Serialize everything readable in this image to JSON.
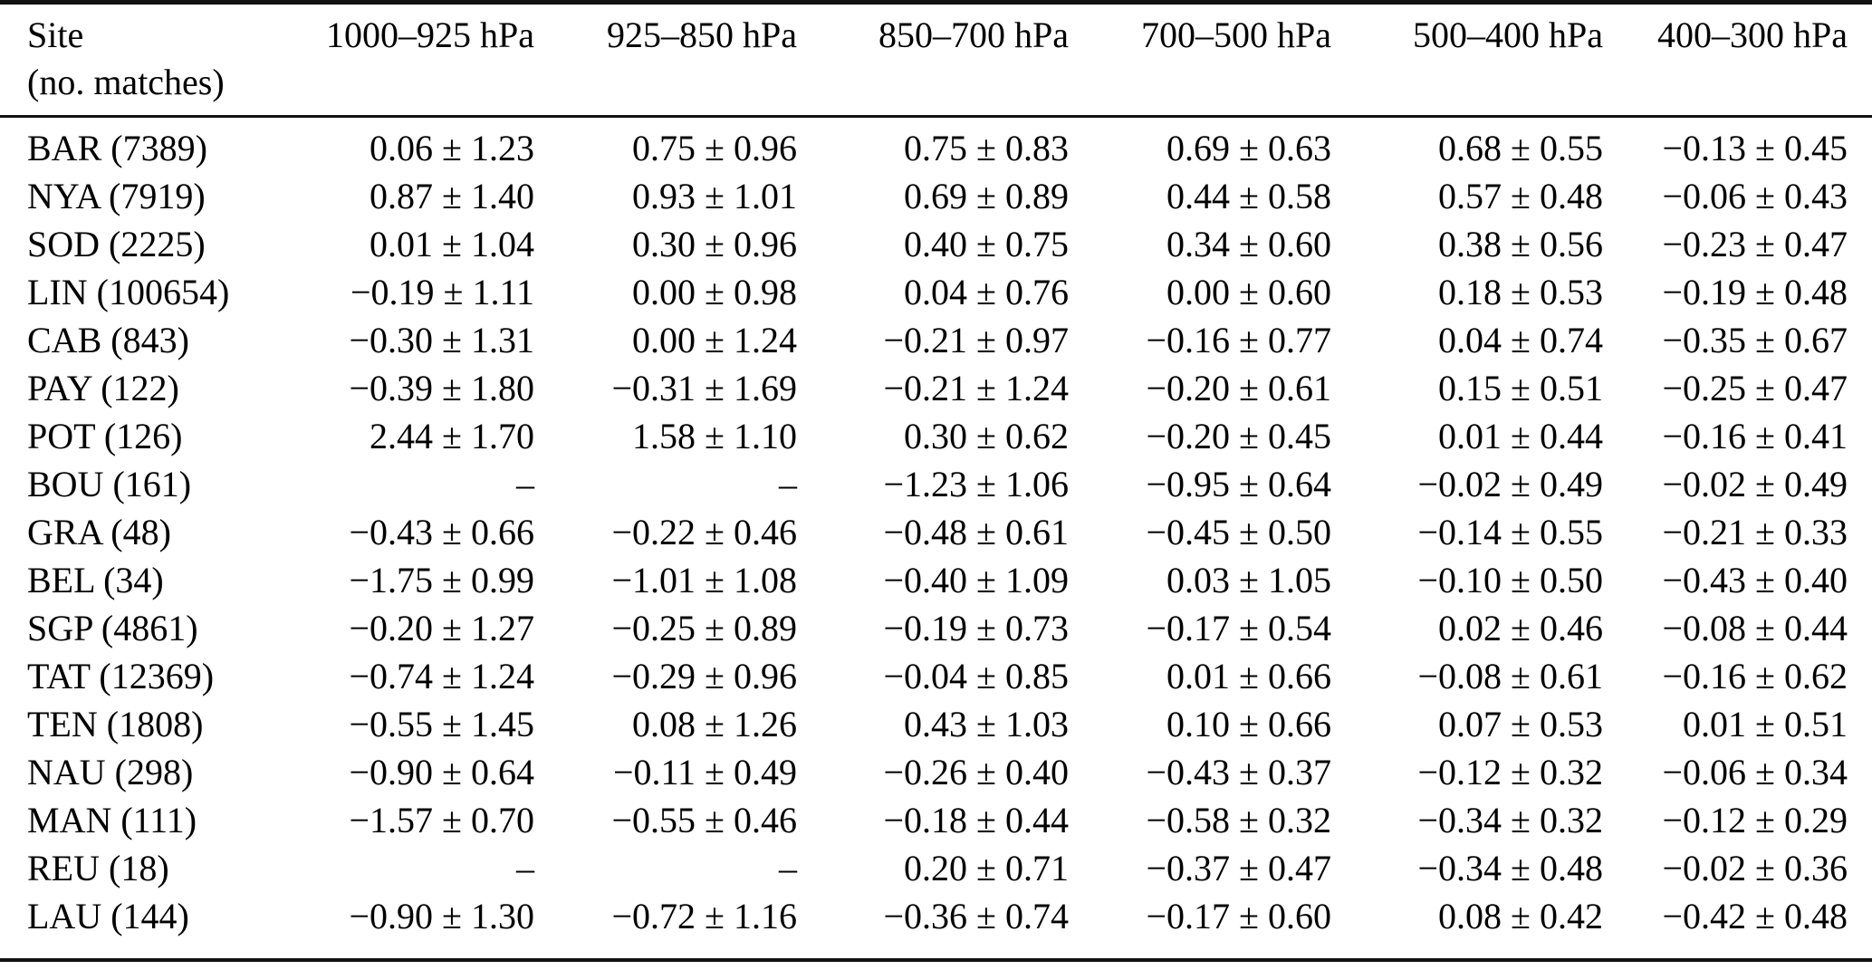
{
  "page": {
    "background_color": "#ffffff",
    "text_color": "#000000"
  },
  "table": {
    "header": {
      "site_label_line1": "Site",
      "site_label_line2": "(no. matches)",
      "columns": [
        "1000–925 hPa",
        "925–850 hPa",
        "850–700 hPa",
        "700–500 hPa",
        "500–400 hPa",
        "400–300 hPa"
      ]
    },
    "missing_value_symbol": "–",
    "rows": [
      {
        "site": "BAR (7389)",
        "values": [
          "0.06 ± 1.23",
          "0.75 ± 0.96",
          "0.75 ± 0.83",
          "0.69 ± 0.63",
          "0.68 ± 0.55",
          "−0.13 ± 0.45"
        ]
      },
      {
        "site": "NYA (7919)",
        "values": [
          "0.87 ± 1.40",
          "0.93 ± 1.01",
          "0.69 ± 0.89",
          "0.44 ± 0.58",
          "0.57 ± 0.48",
          "−0.06 ± 0.43"
        ]
      },
      {
        "site": "SOD (2225)",
        "values": [
          "0.01 ± 1.04",
          "0.30 ± 0.96",
          "0.40 ± 0.75",
          "0.34 ± 0.60",
          "0.38 ± 0.56",
          "−0.23 ± 0.47"
        ]
      },
      {
        "site": "LIN (100654)",
        "values": [
          "−0.19 ± 1.11",
          "0.00 ± 0.98",
          "0.04 ± 0.76",
          "0.00 ± 0.60",
          "0.18 ± 0.53",
          "−0.19 ± 0.48"
        ]
      },
      {
        "site": "CAB (843)",
        "values": [
          "−0.30 ± 1.31",
          "0.00 ± 1.24",
          "−0.21 ± 0.97",
          "−0.16 ± 0.77",
          "0.04 ± 0.74",
          "−0.35 ± 0.67"
        ]
      },
      {
        "site": "PAY (122)",
        "values": [
          "−0.39 ± 1.80",
          "−0.31 ± 1.69",
          "−0.21 ± 1.24",
          "−0.20 ± 0.61",
          "0.15 ± 0.51",
          "−0.25 ± 0.47"
        ]
      },
      {
        "site": "POT (126)",
        "values": [
          "2.44 ± 1.70",
          "1.58 ± 1.10",
          "0.30 ± 0.62",
          "−0.20 ± 0.45",
          "0.01 ± 0.44",
          "−0.16 ± 0.41"
        ]
      },
      {
        "site": "BOU (161)",
        "values": [
          "–",
          "–",
          "−1.23 ± 1.06",
          "−0.95 ± 0.64",
          "−0.02 ± 0.49",
          "−0.02 ± 0.49"
        ]
      },
      {
        "site": "GRA (48)",
        "values": [
          "−0.43 ± 0.66",
          "−0.22 ± 0.46",
          "−0.48 ± 0.61",
          "−0.45 ± 0.50",
          "−0.14 ± 0.55",
          "−0.21 ± 0.33"
        ]
      },
      {
        "site": "BEL (34)",
        "values": [
          "−1.75 ± 0.99",
          "−1.01 ± 1.08",
          "−0.40 ± 1.09",
          "0.03 ± 1.05",
          "−0.10 ± 0.50",
          "−0.43 ± 0.40"
        ]
      },
      {
        "site": "SGP (4861)",
        "values": [
          "−0.20 ± 1.27",
          "−0.25 ± 0.89",
          "−0.19 ± 0.73",
          "−0.17 ± 0.54",
          "0.02 ± 0.46",
          "−0.08 ± 0.44"
        ]
      },
      {
        "site": "TAT (12369)",
        "values": [
          "−0.74 ± 1.24",
          "−0.29 ± 0.96",
          "−0.04 ± 0.85",
          "0.01 ± 0.66",
          "−0.08 ± 0.61",
          "−0.16 ± 0.62"
        ]
      },
      {
        "site": "TEN (1808)",
        "values": [
          "−0.55 ± 1.45",
          "0.08 ± 1.26",
          "0.43 ± 1.03",
          "0.10 ± 0.66",
          "0.07 ± 0.53",
          "0.01 ± 0.51"
        ]
      },
      {
        "site": "NAU (298)",
        "values": [
          "−0.90 ± 0.64",
          "−0.11 ± 0.49",
          "−0.26 ± 0.40",
          "−0.43 ± 0.37",
          "−0.12 ± 0.32",
          "−0.06 ± 0.34"
        ]
      },
      {
        "site": "MAN (111)",
        "values": [
          "−1.57 ± 0.70",
          "−0.55 ± 0.46",
          "−0.18 ± 0.44",
          "−0.58 ± 0.32",
          "−0.34 ± 0.32",
          "−0.12 ± 0.29"
        ]
      },
      {
        "site": "REU (18)",
        "values": [
          "–",
          "–",
          "0.20 ± 0.71",
          "−0.37 ± 0.47",
          "−0.34 ± 0.48",
          "−0.02 ± 0.36"
        ]
      },
      {
        "site": "LAU (144)",
        "values": [
          "−0.90 ± 1.30",
          "−0.72 ± 1.16",
          "−0.36 ± 0.74",
          "−0.17 ± 0.60",
          "0.08 ± 0.42",
          "−0.42 ± 0.48"
        ]
      }
    ]
  }
}
